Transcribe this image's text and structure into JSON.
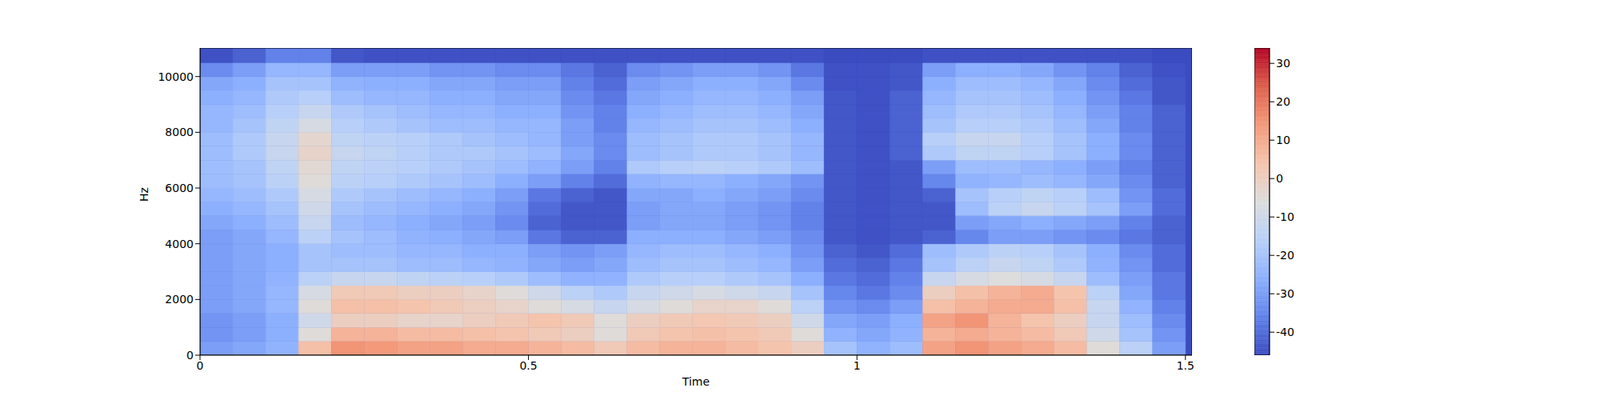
{
  "chart_data": {
    "type": "heatmap",
    "x_label": "Time",
    "y_label": "Hz",
    "xlim": [
      0,
      1.51
    ],
    "xticks": [
      0,
      0.5,
      1,
      1.5
    ],
    "ylim": [
      0,
      11025
    ],
    "yticks": [
      0,
      2000,
      4000,
      6000,
      8000,
      10000
    ],
    "time_bins": [
      0,
      0.05,
      0.1,
      0.15,
      0.2,
      0.25,
      0.3,
      0.35,
      0.4,
      0.45,
      0.5,
      0.55,
      0.6,
      0.65,
      0.7,
      0.75,
      0.8,
      0.85,
      0.9,
      0.95,
      1.0,
      1.05,
      1.1,
      1.15,
      1.2,
      1.25,
      1.3,
      1.35,
      1.4,
      1.45,
      1.5
    ],
    "freq_bins": [
      0,
      500,
      1000,
      1500,
      2000,
      2500,
      3000,
      3500,
      4000,
      4500,
      5000,
      5500,
      6000,
      6500,
      7000,
      7500,
      8000,
      8500,
      9000,
      9500,
      10000,
      10500,
      11000
    ],
    "cells": [
      [
        -30,
        -28,
        -25,
        5,
        15,
        14,
        12,
        12,
        10,
        10,
        8,
        6,
        2,
        6,
        8,
        8,
        6,
        4,
        0,
        -20,
        -25,
        -22,
        12,
        15,
        12,
        10,
        6,
        -5,
        -15,
        -30
      ],
      [
        -32,
        -30,
        -26,
        -5,
        8,
        8,
        6,
        6,
        5,
        4,
        2,
        0,
        -5,
        2,
        4,
        5,
        4,
        2,
        -5,
        -25,
        -28,
        -25,
        8,
        10,
        8,
        6,
        2,
        -10,
        -20,
        -32
      ],
      [
        -32,
        -30,
        -26,
        -10,
        0,
        0,
        -2,
        -2,
        0,
        2,
        4,
        2,
        -5,
        0,
        2,
        3,
        2,
        0,
        -10,
        -28,
        -30,
        -26,
        12,
        15,
        8,
        4,
        0,
        -12,
        -22,
        -34
      ],
      [
        -30,
        -28,
        -24,
        -5,
        5,
        5,
        4,
        2,
        0,
        -2,
        -5,
        -8,
        -12,
        -8,
        -5,
        -2,
        -2,
        -5,
        -15,
        -32,
        -34,
        -30,
        5,
        8,
        10,
        10,
        5,
        -12,
        -25,
        -36
      ],
      [
        -30,
        -28,
        -24,
        -8,
        2,
        2,
        0,
        0,
        -2,
        -5,
        -10,
        -15,
        -18,
        -12,
        -10,
        -8,
        -10,
        -12,
        -20,
        -35,
        -38,
        -34,
        0,
        5,
        8,
        10,
        4,
        -15,
        -28,
        -38
      ],
      [
        -30,
        -28,
        -25,
        -15,
        -12,
        -12,
        -14,
        -15,
        -16,
        -18,
        -22,
        -25,
        -25,
        -18,
        -16,
        -16,
        -18,
        -20,
        -26,
        -38,
        -40,
        -36,
        -12,
        -8,
        -6,
        -8,
        -12,
        -22,
        -30,
        -38
      ],
      [
        -30,
        -28,
        -26,
        -20,
        -20,
        -20,
        -22,
        -22,
        -24,
        -25,
        -28,
        -30,
        -28,
        -22,
        -20,
        -20,
        -22,
        -24,
        -30,
        -40,
        -42,
        -38,
        -20,
        -15,
        -12,
        -14,
        -18,
        -25,
        -32,
        -40
      ],
      [
        -30,
        -28,
        -26,
        -20,
        -22,
        -22,
        -24,
        -24,
        -26,
        -26,
        -30,
        -32,
        -30,
        -24,
        -22,
        -22,
        -24,
        -26,
        -32,
        -42,
        -44,
        -40,
        -22,
        -18,
        -15,
        -16,
        -20,
        -26,
        -34,
        -40
      ],
      [
        -30,
        -28,
        -24,
        -15,
        -20,
        -22,
        -25,
        -26,
        -28,
        -30,
        -38,
        -42,
        -42,
        -26,
        -26,
        -26,
        -28,
        -30,
        -34,
        -44,
        -45,
        -44,
        -42,
        -35,
        -30,
        -30,
        -32,
        -34,
        -38,
        -42
      ],
      [
        -28,
        -26,
        -22,
        -12,
        -22,
        -24,
        -26,
        -28,
        -30,
        -34,
        -42,
        -44,
        -44,
        -30,
        -28,
        -28,
        -30,
        -32,
        -36,
        -44,
        -45,
        -44,
        -44,
        -30,
        -28,
        -26,
        -28,
        -30,
        -36,
        -42
      ],
      [
        -26,
        -24,
        -20,
        -10,
        -20,
        -22,
        -24,
        -26,
        -28,
        -32,
        -40,
        -44,
        -44,
        -30,
        -28,
        -28,
        -30,
        -32,
        -36,
        -44,
        -45,
        -44,
        -44,
        -22,
        -15,
        -12,
        -15,
        -20,
        -30,
        -40
      ],
      [
        -24,
        -22,
        -18,
        -8,
        -18,
        -20,
        -22,
        -24,
        -26,
        -30,
        -38,
        -42,
        -44,
        -28,
        -28,
        -26,
        -28,
        -30,
        -34,
        -44,
        -45,
        -44,
        -42,
        -20,
        -16,
        -14,
        -16,
        -22,
        -32,
        -40
      ],
      [
        -22,
        -20,
        -15,
        -5,
        -15,
        -16,
        -18,
        -20,
        -22,
        -26,
        -30,
        -36,
        -40,
        -25,
        -24,
        -24,
        -26,
        -28,
        -32,
        -44,
        -45,
        -44,
        -35,
        -25,
        -24,
        -22,
        -24,
        -28,
        -34,
        -42
      ],
      [
        -22,
        -20,
        -14,
        -4,
        -14,
        -15,
        -16,
        -18,
        -20,
        -22,
        -25,
        -30,
        -36,
        -18,
        -16,
        -15,
        -16,
        -18,
        -22,
        -44,
        -45,
        -44,
        -30,
        -22,
        -22,
        -24,
        -26,
        -30,
        -36,
        -42
      ],
      [
        -22,
        -18,
        -12,
        -2,
        -12,
        -14,
        -16,
        -18,
        -18,
        -20,
        -22,
        -28,
        -34,
        -22,
        -20,
        -18,
        -18,
        -20,
        -24,
        -44,
        -45,
        -42,
        -18,
        -14,
        -14,
        -16,
        -20,
        -26,
        -34,
        -42
      ],
      [
        -22,
        -18,
        -12,
        -3,
        -14,
        -15,
        -16,
        -18,
        -20,
        -22,
        -24,
        -30,
        -34,
        -22,
        -20,
        -18,
        -18,
        -20,
        -24,
        -44,
        -45,
        -42,
        -16,
        -12,
        -12,
        -16,
        -20,
        -26,
        -34,
        -42
      ],
      [
        -24,
        -20,
        -14,
        -8,
        -16,
        -18,
        -20,
        -22,
        -22,
        -24,
        -24,
        -30,
        -36,
        -24,
        -22,
        -20,
        -20,
        -22,
        -26,
        -44,
        -45,
        -42,
        -20,
        -16,
        -16,
        -18,
        -22,
        -28,
        -36,
        -42
      ],
      [
        -24,
        -22,
        -16,
        -12,
        -18,
        -20,
        -22,
        -24,
        -24,
        -26,
        -26,
        -32,
        -36,
        -26,
        -24,
        -22,
        -22,
        -24,
        -28,
        -44,
        -45,
        -42,
        -22,
        -18,
        -18,
        -20,
        -24,
        -30,
        -36,
        -42
      ],
      [
        -26,
        -24,
        -18,
        -16,
        -22,
        -24,
        -24,
        -26,
        -26,
        -28,
        -28,
        -34,
        -38,
        -28,
        -26,
        -24,
        -24,
        -26,
        -30,
        -44,
        -45,
        -42,
        -24,
        -20,
        -20,
        -22,
        -26,
        -32,
        -38,
        -44
      ],
      [
        -28,
        -26,
        -20,
        -20,
        -25,
        -26,
        -26,
        -28,
        -28,
        -30,
        -30,
        -36,
        -40,
        -30,
        -28,
        -26,
        -26,
        -28,
        -34,
        -45,
        -45,
        -44,
        -26,
        -22,
        -22,
        -24,
        -28,
        -34,
        -40,
        -44
      ],
      [
        -34,
        -30,
        -24,
        -24,
        -30,
        -30,
        -30,
        -32,
        -32,
        -34,
        -34,
        -38,
        -42,
        -34,
        -32,
        -30,
        -30,
        -32,
        -38,
        -45,
        -45,
        -44,
        -30,
        -26,
        -26,
        -28,
        -32,
        -36,
        -42,
        -45
      ],
      [
        -45,
        -42,
        -36,
        -36,
        -44,
        -45,
        -45,
        -45,
        -45,
        -45,
        -45,
        -45,
        -45,
        -45,
        -45,
        -45,
        -45,
        -45,
        -45,
        -46,
        -46,
        -46,
        -45,
        -45,
        -45,
        -45,
        -45,
        -45,
        -45,
        -46
      ]
    ],
    "colorbar": {
      "range": [
        -46,
        34
      ],
      "ticks": [
        -40,
        -30,
        -20,
        -10,
        0,
        10,
        20,
        30
      ]
    }
  }
}
